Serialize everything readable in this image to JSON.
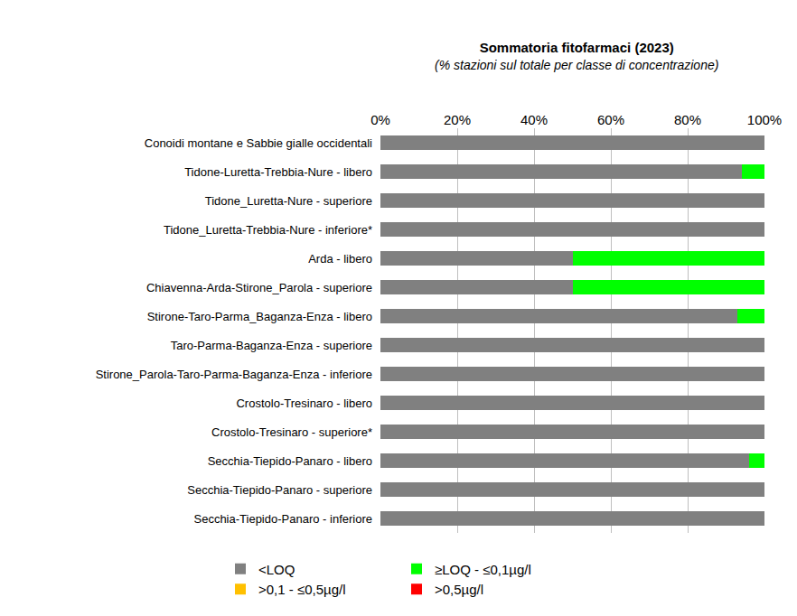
{
  "chart_data": {
    "type": "bar",
    "title": "Sommatoria fitofarmaci (2023)",
    "subtitle": "(% stazioni sul totale per classe di concentrazione)",
    "orientation": "horizontal",
    "stacked": true,
    "grid": true,
    "legend": "bottom",
    "categories": [
      "Conoidi montane e Sabbie gialle occidentali",
      "Tidone-Luretta-Trebbia-Nure - libero",
      "Tidone_Luretta-Nure - superiore",
      "Tidone_Luretta-Trebbia-Nure - inferiore*",
      "Arda - libero",
      "Chiavenna-Arda-Stirone_Parola - superiore",
      "Stirone-Taro-Parma_Baganza-Enza - libero",
      "Taro-Parma-Baganza-Enza - superiore",
      "Stirone_Parola-Taro-Parma-Baganza-Enza - inferiore",
      "Crostolo-Tresinaro - libero",
      "Crostolo-Tresinaro - superiore*",
      "Secchia-Tiepido-Panaro - libero",
      "Secchia-Tiepido-Panaro - superiore",
      "Secchia-Tiepido-Panaro - inferiore"
    ],
    "series": [
      {
        "name": "<LOQ",
        "color": "#808080",
        "values": [
          100,
          94,
          100,
          100,
          50,
          50,
          93,
          100,
          100,
          100,
          100,
          96,
          100,
          100
        ]
      },
      {
        "name": "≥LOQ - ≤0,1µg/l",
        "color": "#00ff00",
        "values": [
          0,
          6,
          0,
          0,
          50,
          50,
          7,
          0,
          0,
          0,
          0,
          4,
          0,
          0
        ]
      },
      {
        "name": ">0,1 - ≤0,5µg/l",
        "color": "#ffc000",
        "values": [
          0,
          0,
          0,
          0,
          0,
          0,
          0,
          0,
          0,
          0,
          0,
          0,
          0,
          0
        ]
      },
      {
        "name": ">0,5µg/l",
        "color": "#ff0000",
        "values": [
          0,
          0,
          0,
          0,
          0,
          0,
          0,
          0,
          0,
          0,
          0,
          0,
          0,
          0
        ]
      }
    ],
    "xlim": [
      0,
      100
    ],
    "xticks": [
      {
        "value": 0,
        "label": "0%"
      },
      {
        "value": 20,
        "label": "20%"
      },
      {
        "value": 40,
        "label": "40%"
      },
      {
        "value": 60,
        "label": "60%"
      },
      {
        "value": 80,
        "label": "80%"
      },
      {
        "value": 100,
        "label": "100%"
      }
    ]
  }
}
